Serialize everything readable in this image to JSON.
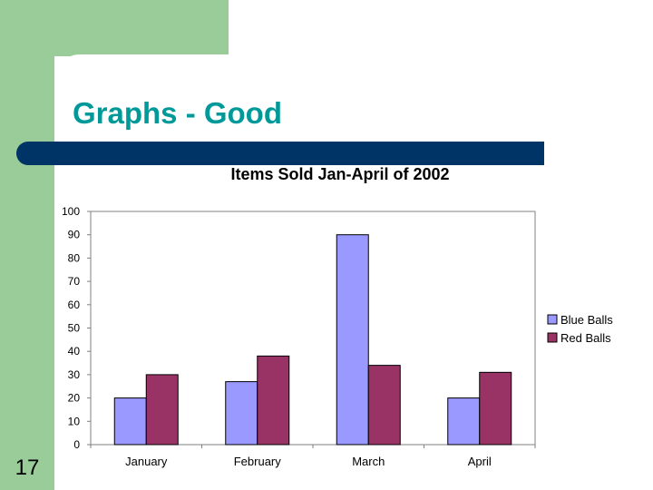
{
  "slide": {
    "title": "Graphs - Good",
    "number": "17",
    "colors": {
      "sidebar": "#99cc99",
      "title_bar": "#003366",
      "title_text": "#009999"
    }
  },
  "chart_data": {
    "type": "bar",
    "title": "Items Sold Jan-April of 2002",
    "categories": [
      "January",
      "February",
      "March",
      "April"
    ],
    "series": [
      {
        "name": "Blue Balls",
        "values": [
          20,
          27,
          90,
          20
        ],
        "color": "#9999ff"
      },
      {
        "name": "Red Balls",
        "values": [
          30,
          38,
          34,
          31
        ],
        "color": "#993366"
      }
    ],
    "xlabel": "",
    "ylabel": "",
    "ylim": [
      0,
      100
    ],
    "yticks": [
      0,
      10,
      20,
      30,
      40,
      50,
      60,
      70,
      80,
      90,
      100
    ],
    "grid": false,
    "legend": "right"
  }
}
